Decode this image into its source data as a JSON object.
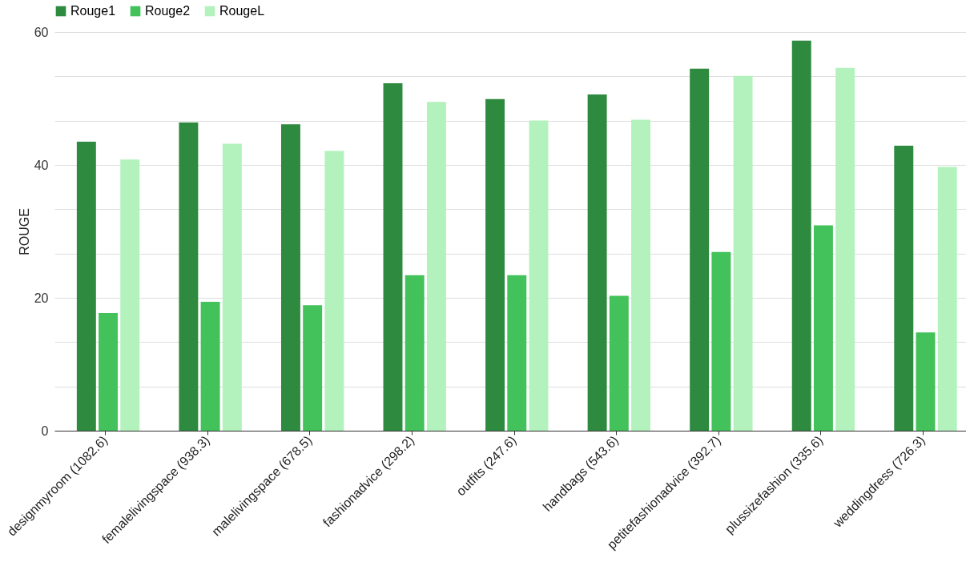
{
  "chart_data": {
    "type": "bar",
    "ylabel": "ROUGE",
    "categories": [
      "designmyroom (1082.6)",
      "femalelivingspace (938.3)",
      "malelivingspace (678.5)",
      "fashionadvice (298.2)",
      "outfits (247.6)",
      "handbags (543.6)",
      "petitefashionadvice (392.7)",
      "plussizefashion (335.6)",
      "weddingdress (726.3)"
    ],
    "series": [
      {
        "name": "Rouge1",
        "color": "#2d8a3e",
        "values": [
          43.5,
          46.4,
          46.1,
          52.3,
          49.9,
          50.6,
          54.5,
          58.7,
          42.9
        ]
      },
      {
        "name": "Rouge2",
        "color": "#43c15a",
        "values": [
          17.7,
          19.4,
          18.9,
          23.4,
          23.4,
          20.3,
          26.9,
          30.9,
          14.8
        ]
      },
      {
        "name": "RougeL",
        "color": "#b3f2bd",
        "values": [
          40.8,
          43.2,
          42.1,
          49.5,
          46.7,
          46.8,
          53.4,
          54.6,
          39.7
        ]
      }
    ],
    "ylim": [
      0,
      60
    ],
    "yticks": [
      0,
      {
        "value": 6.667,
        "label": null
      },
      {
        "value": 13.333,
        "label": null
      },
      20,
      {
        "value": 26.667,
        "label": null
      },
      {
        "value": 33.333,
        "label": null
      },
      40,
      {
        "value": 46.667,
        "label": null
      },
      {
        "value": 53.333,
        "label": null
      },
      60
    ],
    "grid": "y",
    "legend": "top"
  }
}
